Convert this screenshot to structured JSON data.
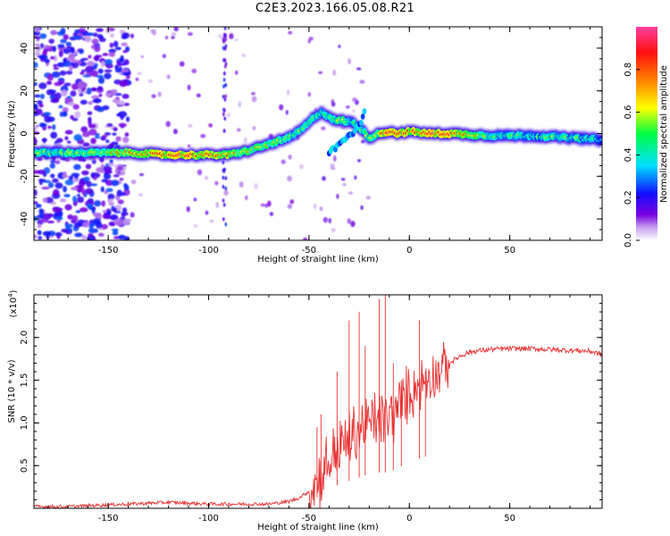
{
  "title": "C2E3.2023.166.05.08.R21",
  "chart_data": [
    {
      "type": "heatmap",
      "xlabel": "Height of straight line (km)",
      "ylabel": "Frequency (Hz)",
      "xlim": [
        -187,
        96
      ],
      "ylim": [
        -50,
        50
      ],
      "x_ticks": [
        -150,
        -100,
        -50,
        0,
        50
      ],
      "y_ticks": [
        -40,
        -20,
        0,
        20,
        40
      ],
      "colorbar": {
        "label": "Normalized spectral amplitude",
        "range": [
          0,
          1
        ],
        "ticks": [
          0.0,
          0.2,
          0.4,
          0.6,
          0.8
        ],
        "colormap": [
          "#ffffff",
          "#7a00e0",
          "#0000ff",
          "#00e0ff",
          "#00ff40",
          "#ffff00",
          "#ff8000",
          "#ff0000",
          "#ff40a0"
        ]
      },
      "ridge": {
        "x": [
          -187,
          -160,
          -140,
          -120,
          -100,
          -90,
          -80,
          -70,
          -60,
          -55,
          -50,
          -47,
          -44,
          -40,
          -37,
          -33,
          -28,
          -24,
          -20,
          -15,
          -10,
          -5,
          0,
          10,
          20,
          40,
          60,
          80,
          96
        ],
        "y": [
          -9,
          -9,
          -9,
          -10,
          -10,
          -10,
          -8,
          -5,
          -2,
          1,
          5,
          8,
          10,
          8,
          6,
          6,
          5,
          2,
          -2,
          0,
          1,
          0,
          1,
          0,
          0,
          -1,
          -1,
          -2,
          -3
        ],
        "peak_amplitude": [
          0.5,
          0.55,
          0.7,
          0.85,
          0.8,
          0.75,
          0.6,
          0.6,
          0.55,
          0.5,
          0.45,
          0.5,
          0.45,
          0.4,
          0.5,
          0.55,
          0.4,
          0.5,
          0.55,
          0.7,
          0.9,
          0.85,
          0.8,
          0.9,
          0.85,
          0.5,
          0.45,
          0.5,
          0.4
        ]
      },
      "secondary_branch": {
        "x": [
          -40,
          -35,
          -30,
          -25,
          -22
        ],
        "y": [
          -9,
          -5,
          -1,
          3,
          12
        ]
      },
      "noise_region_x": [
        -187,
        -140
      ]
    },
    {
      "type": "line",
      "xlabel": "Height of straight line (km)",
      "ylabel": "SNR (10 * v/v)",
      "y_scale_label": "(x10",
      "y_scale_exponent": "4",
      "xlim": [
        -187,
        96
      ],
      "ylim": [
        0,
        2.5
      ],
      "x_ticks": [
        -150,
        -100,
        -50,
        0,
        50
      ],
      "y_ticks": [
        0.5,
        1.0,
        1.5,
        2.0
      ],
      "color": "#e83030",
      "series": [
        {
          "x": [
            -187,
            -170,
            -150,
            -140,
            -130,
            -120,
            -110,
            -100,
            -90,
            -80,
            -70,
            -60,
            -55,
            -50,
            -45,
            -40,
            -35,
            -30,
            -25,
            -20,
            -15,
            -10,
            -5,
            0,
            5,
            10,
            15,
            20,
            25,
            30,
            40,
            50,
            60,
            70,
            80,
            90,
            96
          ],
          "values": [
            0.02,
            0.02,
            0.04,
            0.05,
            0.06,
            0.07,
            0.06,
            0.05,
            0.05,
            0.05,
            0.05,
            0.08,
            0.12,
            0.2,
            0.35,
            0.55,
            0.7,
            0.8,
            0.9,
            1.0,
            1.05,
            1.05,
            1.2,
            1.35,
            1.45,
            1.55,
            1.6,
            1.7,
            1.78,
            1.83,
            1.86,
            1.87,
            1.87,
            1.86,
            1.85,
            1.84,
            1.8
          ],
          "spikes": [
            {
              "x": -46,
              "y": 0.95
            },
            {
              "x": -44,
              "y": 1.1
            },
            {
              "x": -36,
              "y": 1.6
            },
            {
              "x": -30,
              "y": 2.2
            },
            {
              "x": -25,
              "y": 2.3
            },
            {
              "x": -22,
              "y": 1.9
            },
            {
              "x": -15,
              "y": 2.45
            },
            {
              "x": -12,
              "y": 2.6
            },
            {
              "x": -8,
              "y": 1.7
            },
            {
              "x": -4,
              "y": 1.5
            },
            {
              "x": 5,
              "y": 2.2
            },
            {
              "x": 8,
              "y": 1.6
            }
          ]
        }
      ]
    }
  ]
}
